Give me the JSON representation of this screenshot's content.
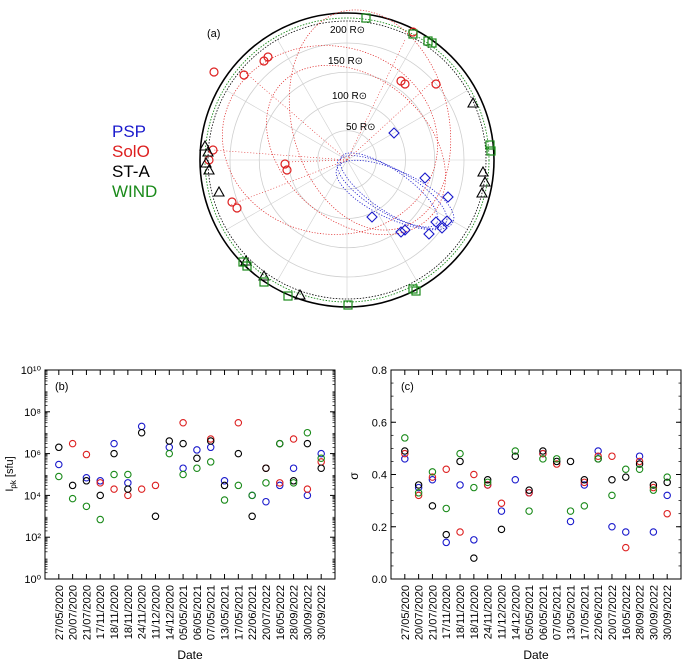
{
  "colors": {
    "PSP": "#1a1acc",
    "SolO": "#dd2020",
    "ST-A": "#000000",
    "WIND": "#1a8a1a",
    "grid": "#cfcfcf",
    "radial_label": "#a0a0a0"
  },
  "legend": [
    {
      "name": "PSP",
      "color": "#1a1acc"
    },
    {
      "name": "SolO",
      "color": "#dd2020"
    },
    {
      "name": "ST-A",
      "color": "#000000"
    },
    {
      "name": "WIND",
      "color": "#1a8a1a"
    }
  ],
  "panel_a": {
    "label": "(a)",
    "radial_labels": [
      "50 R⊙",
      "100 R⊙",
      "150 R⊙",
      "200 R⊙"
    ]
  },
  "chart_data": [
    {
      "type": "scatter",
      "panel": "(b)",
      "xlabel": "Date",
      "ylabel": "I_pk [sfu]",
      "ylabel_main": "I",
      "ylabel_sub": "pk",
      "ylabel_unit": " [sfu]",
      "yscale": "log",
      "ylim": [
        1,
        10000000000
      ],
      "ytick_labels": [
        "10⁰",
        "10²",
        "10⁴",
        "10⁶",
        "10⁸",
        "10¹⁰"
      ],
      "categories": [
        "27/05/2020",
        "20/07/2020",
        "21/07/2020",
        "17/11/2020",
        "18/11/2020",
        "18/11/2020",
        "24/11/2020",
        "11/12/2020",
        "14/12/2020",
        "05/05/2021",
        "06/05/2021",
        "07/05/2021",
        "13/05/2021",
        "17/05/2021",
        "22/06/2021",
        "20/07/2022",
        "16/05/2022",
        "28/09/2022",
        "30/09/2022",
        "30/09/2022"
      ],
      "series": [
        {
          "name": "PSP",
          "values": [
            300000,
            null,
            70000,
            50000,
            3000000,
            40000,
            20000000,
            null,
            2000000,
            200000,
            1500000,
            2000000,
            50000,
            null,
            10000,
            5000,
            30000,
            200000,
            10000,
            1000000
          ]
        },
        {
          "name": "SolO",
          "values": [
            null,
            3000000,
            900000,
            40000,
            20000,
            10000,
            20000,
            30000,
            null,
            30000000,
            null,
            5000000,
            null,
            30000000,
            null,
            200000,
            40000,
            5000000,
            20000,
            400000
          ]
        },
        {
          "name": "ST-A",
          "values": [
            2000000,
            30000,
            50000,
            10000,
            1000000,
            20000,
            10000000,
            1000,
            4000000,
            3000000,
            600000,
            4000000,
            30000,
            1000000,
            1000,
            200000,
            3000000,
            50000,
            3000000,
            200000
          ]
        },
        {
          "name": "WIND",
          "values": [
            80000,
            7000,
            3000,
            700,
            100000,
            100000,
            null,
            null,
            1000000,
            100000,
            200000,
            400000,
            6000,
            30000,
            10000,
            40000,
            3000000,
            40000,
            10000000,
            600000
          ]
        }
      ]
    },
    {
      "type": "scatter",
      "panel": "(c)",
      "xlabel": "Date",
      "ylabel": "σ",
      "ylim": [
        0,
        0.8
      ],
      "ytick_labels": [
        "0.0",
        "0.2",
        "0.4",
        "0.6",
        "0.8"
      ],
      "categories": [
        "27/05/2020",
        "20/07/2020",
        "21/07/2020",
        "17/11/2020",
        "18/11/2020",
        "18/11/2020",
        "24/11/2020",
        "11/12/2020",
        "14/12/2020",
        "05/05/2021",
        "06/05/2021",
        "07/05/2021",
        "13/05/2021",
        "17/05/2021",
        "22/06/2021",
        "20/07/2022",
        "16/05/2022",
        "28/09/2022",
        "30/09/2022",
        "30/09/2022"
      ],
      "series": [
        {
          "name": "PSP",
          "values": [
            0.46,
            0.35,
            0.38,
            0.14,
            0.36,
            0.15,
            0.36,
            0.26,
            0.38,
            0.33,
            0.48,
            null,
            0.22,
            0.36,
            0.49,
            0.2,
            0.18,
            0.47,
            0.18,
            0.32
          ]
        },
        {
          "name": "SolO",
          "values": [
            0.48,
            0.32,
            0.39,
            0.42,
            0.18,
            0.4,
            0.36,
            0.29,
            null,
            0.33,
            0.48,
            0.44,
            null,
            0.37,
            0.47,
            0.47,
            0.12,
            0.45,
            0.35,
            0.25
          ]
        },
        {
          "name": "ST-A",
          "values": [
            0.49,
            0.36,
            0.28,
            0.17,
            0.45,
            0.08,
            0.38,
            0.19,
            0.47,
            0.34,
            0.49,
            0.45,
            0.45,
            0.38,
            0.46,
            0.38,
            0.39,
            0.44,
            0.36,
            0.37
          ]
        },
        {
          "name": "WIND",
          "values": [
            0.54,
            0.33,
            0.41,
            0.27,
            0.48,
            0.35,
            0.37,
            null,
            0.49,
            0.26,
            0.46,
            0.46,
            0.26,
            0.28,
            0.46,
            0.32,
            0.42,
            0.42,
            0.34,
            0.39
          ]
        }
      ]
    }
  ]
}
